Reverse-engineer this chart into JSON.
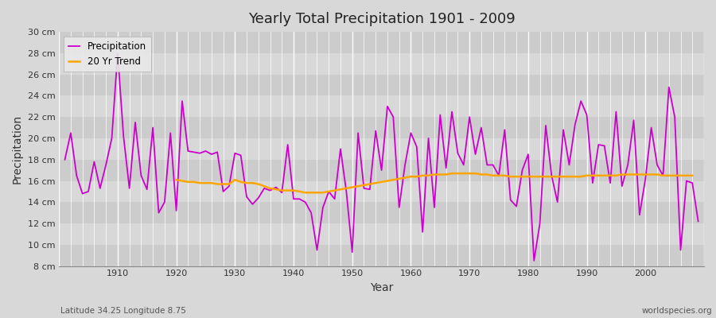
{
  "title": "Yearly Total Precipitation 1901 - 2009",
  "xlabel": "Year",
  "ylabel": "Precipitation",
  "subtitle_left": "Latitude 34.25 Longitude 8.75",
  "subtitle_right": "worldspecies.org",
  "ylim": [
    8,
    30
  ],
  "yticks": [
    8,
    10,
    12,
    14,
    16,
    18,
    20,
    22,
    24,
    26,
    28,
    30
  ],
  "ytick_labels": [
    "8 cm",
    "10 cm",
    "12 cm",
    "14 cm",
    "16 cm",
    "18 cm",
    "20 cm",
    "22 cm",
    "24 cm",
    "26 cm",
    "28 cm",
    "30 cm"
  ],
  "precip_color": "#CC00CC",
  "trend_color": "#FFA500",
  "fig_bg_color": "#D8D8D8",
  "plot_bg_color": "#D0D0D0",
  "years": [
    1901,
    1902,
    1903,
    1904,
    1905,
    1906,
    1907,
    1908,
    1909,
    1910,
    1911,
    1912,
    1913,
    1914,
    1915,
    1916,
    1917,
    1918,
    1919,
    1920,
    1921,
    1922,
    1923,
    1924,
    1925,
    1926,
    1927,
    1928,
    1929,
    1930,
    1931,
    1932,
    1933,
    1934,
    1935,
    1936,
    1937,
    1938,
    1939,
    1940,
    1941,
    1942,
    1943,
    1944,
    1945,
    1946,
    1947,
    1948,
    1949,
    1950,
    1951,
    1952,
    1953,
    1954,
    1955,
    1956,
    1957,
    1958,
    1959,
    1960,
    1961,
    1962,
    1963,
    1964,
    1965,
    1966,
    1967,
    1968,
    1969,
    1970,
    1971,
    1972,
    1973,
    1974,
    1975,
    1976,
    1977,
    1978,
    1979,
    1980,
    1981,
    1982,
    1983,
    1984,
    1985,
    1986,
    1987,
    1988,
    1989,
    1990,
    1991,
    1992,
    1993,
    1994,
    1995,
    1996,
    1997,
    1998,
    1999,
    2000,
    2001,
    2002,
    2003,
    2004,
    2005,
    2006,
    2007,
    2008,
    2009
  ],
  "precip": [
    18.0,
    20.5,
    16.5,
    14.8,
    15.0,
    17.8,
    15.3,
    17.5,
    20.0,
    28.0,
    20.2,
    15.3,
    21.5,
    16.5,
    15.2,
    21.0,
    13.0,
    14.0,
    20.5,
    13.2,
    23.5,
    18.8,
    18.7,
    18.6,
    18.8,
    18.5,
    18.7,
    15.0,
    15.5,
    18.6,
    18.4,
    14.5,
    13.8,
    14.4,
    15.3,
    15.1,
    15.4,
    14.9,
    19.4,
    14.3,
    14.3,
    14.0,
    13.0,
    9.5,
    13.5,
    15.0,
    14.3,
    19.0,
    15.0,
    9.3,
    20.5,
    15.3,
    15.2,
    20.7,
    17.0,
    23.0,
    22.0,
    13.5,
    17.5,
    20.5,
    19.2,
    11.2,
    20.0,
    13.5,
    22.2,
    17.2,
    22.5,
    18.6,
    17.5,
    22.0,
    18.5,
    21.0,
    17.5,
    17.5,
    16.5,
    20.8,
    14.2,
    13.6,
    17.0,
    18.5,
    8.5,
    12.0,
    21.2,
    16.5,
    14.0,
    20.8,
    17.5,
    21.3,
    23.5,
    22.2,
    15.8,
    19.4,
    19.3,
    15.8,
    22.5,
    15.5,
    17.5,
    21.7,
    12.8,
    16.2,
    21.0,
    17.5,
    16.5,
    24.8,
    22.0,
    9.5,
    16.0,
    15.8,
    12.2
  ],
  "trend": [
    null,
    null,
    null,
    null,
    null,
    null,
    null,
    null,
    null,
    null,
    null,
    null,
    null,
    null,
    null,
    null,
    null,
    null,
    null,
    16.1,
    16.0,
    15.9,
    15.9,
    15.8,
    15.8,
    15.8,
    15.7,
    15.7,
    15.7,
    16.1,
    15.9,
    15.8,
    15.8,
    15.7,
    15.5,
    15.3,
    15.2,
    15.1,
    15.1,
    15.1,
    15.0,
    14.9,
    14.9,
    14.9,
    14.9,
    15.0,
    15.1,
    15.2,
    15.3,
    15.4,
    15.5,
    15.6,
    15.7,
    15.8,
    15.9,
    16.0,
    16.1,
    16.2,
    16.3,
    16.4,
    16.4,
    16.5,
    16.5,
    16.6,
    16.6,
    16.6,
    16.7,
    16.7,
    16.7,
    16.7,
    16.7,
    16.6,
    16.6,
    16.5,
    16.5,
    16.5,
    16.4,
    16.4,
    16.4,
    16.4,
    16.4,
    16.4,
    16.4,
    16.4,
    16.4,
    16.4,
    16.4,
    16.4,
    16.4,
    16.5,
    16.5,
    16.5,
    16.5,
    16.5,
    16.5,
    16.6,
    16.6,
    16.6,
    16.6,
    16.6,
    16.6,
    16.6,
    16.5,
    16.5,
    16.5,
    16.5,
    16.5,
    16.5
  ]
}
